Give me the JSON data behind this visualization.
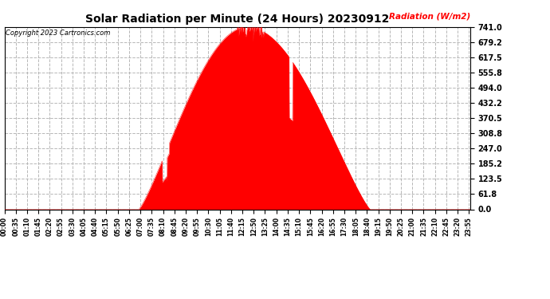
{
  "title": "Solar Radiation per Minute (24 Hours) 20230912",
  "copyright_text": "Copyright 2023 Cartronics.com",
  "ylabel": "Radiation (W/m2)",
  "ylabel_color": "#ff0000",
  "background_color": "#ffffff",
  "fill_color": "#ff0000",
  "line_color": "#ff0000",
  "grid_color": "#b0b0b0",
  "ytick_values": [
    0.0,
    61.8,
    123.5,
    185.2,
    247.0,
    308.8,
    370.5,
    432.2,
    494.0,
    555.8,
    617.5,
    679.2,
    741.0
  ],
  "ymax": 741.0,
  "ymin": 0.0,
  "total_minutes": 1440,
  "sunrise_minute": 415,
  "sunset_minute": 1130,
  "peak_minute": 750,
  "peak_value": 741.0,
  "x_tick_interval": 35,
  "xtick_labels": [
    "00:00",
    "00:35",
    "01:10",
    "01:45",
    "02:20",
    "02:55",
    "03:30",
    "04:05",
    "04:40",
    "05:15",
    "05:50",
    "06:25",
    "07:00",
    "07:35",
    "08:10",
    "08:45",
    "09:20",
    "09:55",
    "10:30",
    "11:05",
    "11:40",
    "12:15",
    "12:50",
    "13:25",
    "14:00",
    "14:35",
    "15:10",
    "15:45",
    "16:20",
    "16:55",
    "17:30",
    "18:05",
    "18:40",
    "19:15",
    "19:50",
    "20:25",
    "21:00",
    "21:35",
    "22:10",
    "22:45",
    "23:20",
    "23:55"
  ]
}
